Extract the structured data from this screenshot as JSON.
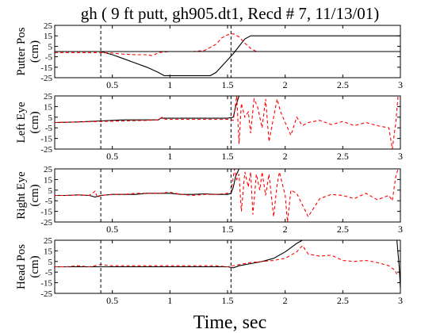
{
  "figure": {
    "title": "gh ( 9 ft putt, gh905.dt1, Recd # 7, 11/13/01)",
    "xlabel": "Time, sec",
    "colors": {
      "solid": "#000000",
      "dashed": "#ff0000",
      "background": "#ffffff"
    }
  },
  "chart_data": [
    {
      "type": "line",
      "ylabel": [
        "Putter Pos",
        "(cm)"
      ],
      "xlim": [
        0,
        3
      ],
      "ylim": [
        -25,
        25
      ],
      "xticks": [
        0,
        0.5,
        1,
        1.5,
        2,
        2.5,
        3
      ],
      "xtick_labels": [
        "0.5",
        "1",
        "1.5",
        "2",
        "2.5",
        "3"
      ],
      "yticks": [
        25,
        15,
        5,
        -5,
        -15,
        -25
      ],
      "ytick_labels": [
        "25",
        "15",
        "5",
        "-5",
        "-15",
        "-25"
      ],
      "vlines": [
        0.4,
        1.53
      ],
      "series": [
        {
          "style": "solid",
          "x": [
            0,
            0.1,
            0.2,
            0.3,
            0.4,
            0.5,
            0.6,
            0.7,
            0.8,
            0.9,
            0.95,
            1.0,
            1.2,
            1.35,
            1.4,
            1.45,
            1.5,
            1.55,
            1.6,
            1.65,
            1.7,
            2.0,
            2.5,
            3.0
          ],
          "y": [
            0,
            0,
            0,
            0,
            0,
            -3,
            -7,
            -11,
            -15,
            -20,
            -23,
            -23,
            -23,
            -23,
            -20,
            -14,
            -8,
            -2,
            5,
            12,
            15,
            15,
            15,
            15
          ]
        },
        {
          "style": "dashed",
          "x": [
            0,
            0.1,
            0.2,
            0.3,
            0.4,
            0.5,
            0.6,
            0.7,
            0.8,
            0.85,
            0.9,
            1.0,
            1.2,
            1.3,
            1.4,
            1.45,
            1.5,
            1.55,
            1.6,
            1.65,
            1.7,
            1.75,
            2.0,
            3.0
          ],
          "y": [
            -1,
            -1,
            -1,
            -1,
            -1,
            -1.5,
            -2.5,
            -3,
            -3,
            -4,
            -1,
            0,
            0,
            1,
            7,
            13,
            16,
            17,
            14,
            8,
            3,
            0,
            0,
            0
          ]
        },
        {
          "style": "solid",
          "x": [
            0,
            3
          ],
          "y": [
            0,
            0
          ]
        }
      ]
    },
    {
      "type": "line",
      "ylabel": [
        "Left Eye",
        "(cm)"
      ],
      "xlim": [
        0,
        3
      ],
      "ylim": [
        -25,
        25
      ],
      "xticks": [
        0,
        0.5,
        1,
        1.5,
        2,
        2.5,
        3
      ],
      "xtick_labels": [
        "0.5",
        "1",
        "1.5",
        "2",
        "2.5",
        "3"
      ],
      "yticks": [
        25,
        15,
        5,
        -5,
        -15,
        -25
      ],
      "ytick_labels": [
        "25",
        "15",
        "5",
        "-5",
        "-15",
        "-25"
      ],
      "vlines": [
        0.4,
        1.53
      ],
      "series": [
        {
          "style": "solid",
          "x": [
            0,
            0.1,
            0.2,
            0.3,
            0.4,
            0.5,
            0.6,
            0.7,
            0.8,
            0.9,
            0.92,
            1.0,
            1.2,
            1.4,
            1.5,
            1.55,
            1.57,
            1.6
          ],
          "y": [
            0,
            0.2,
            0.5,
            1,
            1.5,
            2,
            2.5,
            2.5,
            2.5,
            2.5,
            4,
            4,
            4,
            4,
            4,
            5,
            15,
            25
          ]
        },
        {
          "style": "dashed",
          "x": [
            0,
            0.2,
            0.4,
            0.6,
            0.8,
            0.9,
            0.93,
            0.96,
            1.0,
            1.2,
            1.4,
            1.5,
            1.55,
            1.58,
            1.6,
            1.62,
            1.65,
            1.68,
            1.7,
            1.73,
            1.76,
            1.8,
            1.83,
            1.86,
            1.9,
            1.93,
            1.96,
            2.0,
            2.05,
            2.1,
            2.15,
            2.2,
            2.3,
            2.4,
            2.5,
            2.6,
            2.7,
            2.8,
            2.9,
            2.93,
            2.96,
            2.98,
            3.0
          ],
          "y": [
            0,
            0.5,
            1,
            1.5,
            2,
            2.5,
            5,
            3,
            3,
            3,
            3,
            3,
            2,
            25,
            -20,
            18,
            5,
            10,
            -10,
            22,
            15,
            -5,
            22,
            -18,
            5,
            22,
            10,
            0,
            -12,
            5,
            -3,
            0,
            2,
            -2,
            1,
            -3,
            0,
            -3,
            -5,
            -25,
            0,
            25,
            25
          ]
        }
      ]
    },
    {
      "type": "line",
      "ylabel": [
        "Right Eye",
        "(cm)"
      ],
      "xlim": [
        0,
        3
      ],
      "ylim": [
        -25,
        25
      ],
      "xticks": [
        0,
        0.5,
        1,
        1.5,
        2,
        2.5,
        3
      ],
      "xtick_labels": [
        "0.5",
        "1",
        "1.5",
        "2",
        "2.5",
        "3"
      ],
      "yticks": [
        25,
        15,
        5,
        -5,
        -15,
        -25
      ],
      "ytick_labels": [
        "25",
        "15",
        "5",
        "-5",
        "-15",
        "-25"
      ],
      "vlines": [
        0.4,
        1.53
      ],
      "series": [
        {
          "style": "solid",
          "x": [
            0,
            0.1,
            0.2,
            0.3,
            0.35,
            0.4,
            0.5,
            0.6,
            0.7,
            0.8,
            0.9,
            1.0,
            1.1,
            1.2,
            1.3,
            1.4,
            1.5,
            1.53,
            1.55,
            1.57,
            1.6
          ],
          "y": [
            0,
            0,
            0.5,
            0,
            -1.5,
            0,
            1,
            1,
            1,
            2,
            2,
            2,
            1,
            1,
            1.5,
            1,
            1,
            2,
            8,
            18,
            25
          ]
        },
        {
          "style": "dashed",
          "x": [
            0,
            0.1,
            0.2,
            0.3,
            0.35,
            0.37,
            0.4,
            0.5,
            0.6,
            0.7,
            0.8,
            0.9,
            1.0,
            1.1,
            1.2,
            1.3,
            1.4,
            1.5,
            1.53,
            1.56,
            1.58,
            1.6,
            1.62,
            1.65,
            1.68,
            1.7,
            1.72,
            1.75,
            1.78,
            1.8,
            1.83,
            1.86,
            1.9,
            1.93,
            1.95,
            2.0,
            2.02,
            2.05,
            2.1,
            2.2,
            2.3,
            2.4,
            2.5,
            2.6,
            2.7,
            2.8,
            2.9,
            2.93,
            2.96,
            2.98,
            3.0
          ],
          "y": [
            0,
            0,
            0.5,
            0,
            4,
            -2,
            0,
            1,
            1,
            2,
            2,
            2,
            3,
            1,
            0,
            1,
            1,
            2,
            3,
            25,
            15,
            20,
            -15,
            22,
            8,
            22,
            -18,
            20,
            5,
            22,
            0,
            20,
            -20,
            10,
            22,
            0,
            -25,
            5,
            2,
            -20,
            -3,
            1,
            0,
            -3,
            2,
            -4,
            0,
            -5,
            18,
            25,
            25
          ]
        }
      ]
    },
    {
      "type": "line",
      "ylabel": [
        "Head Pos",
        "(cm)"
      ],
      "xlim": [
        0,
        3
      ],
      "ylim": [
        -25,
        25
      ],
      "xticks": [
        0,
        0.5,
        1,
        1.5,
        2,
        2.5,
        3
      ],
      "xtick_labels": [
        "0.5",
        "1",
        "1.5",
        "2",
        "2.5",
        "3"
      ],
      "yticks": [
        25,
        15,
        5,
        -5,
        -15,
        -25
      ],
      "ytick_labels": [
        "25",
        "15",
        "5",
        "-5",
        "-15",
        "-25"
      ],
      "vlines": [
        0.4,
        1.53
      ],
      "series": [
        {
          "style": "solid",
          "x": [
            0,
            0.2,
            0.4,
            0.6,
            0.8,
            1.0,
            1.2,
            1.4,
            1.5,
            1.55,
            1.6,
            1.7,
            1.8,
            1.9,
            2.0,
            2.05,
            2.1,
            2.15
          ],
          "y": [
            0,
            0,
            0,
            0,
            0,
            0,
            0,
            0,
            0,
            -1,
            1,
            3,
            5,
            8,
            14,
            18,
            22,
            25
          ]
        },
        {
          "style": "solid",
          "x": [
            2.97,
            2.99,
            3.0
          ],
          "y": [
            25,
            0,
            -20
          ]
        },
        {
          "style": "dashed",
          "x": [
            0,
            0.1,
            0.2,
            0.3,
            0.4,
            0.5,
            0.6,
            0.7,
            0.8,
            1.0,
            1.2,
            1.4,
            1.5,
            1.6,
            1.7,
            1.8,
            1.9,
            2.0,
            2.1,
            2.15,
            2.2,
            2.3,
            2.4,
            2.5,
            2.6,
            2.7,
            2.8,
            2.9,
            2.95,
            2.97
          ],
          "y": [
            0,
            0,
            1,
            0,
            2,
            1,
            1,
            1,
            1,
            1,
            1,
            1,
            0,
            2,
            4,
            5,
            6,
            8,
            14,
            20,
            12,
            10,
            11,
            6,
            5,
            6,
            4,
            1,
            -3,
            -7
          ]
        }
      ]
    }
  ]
}
